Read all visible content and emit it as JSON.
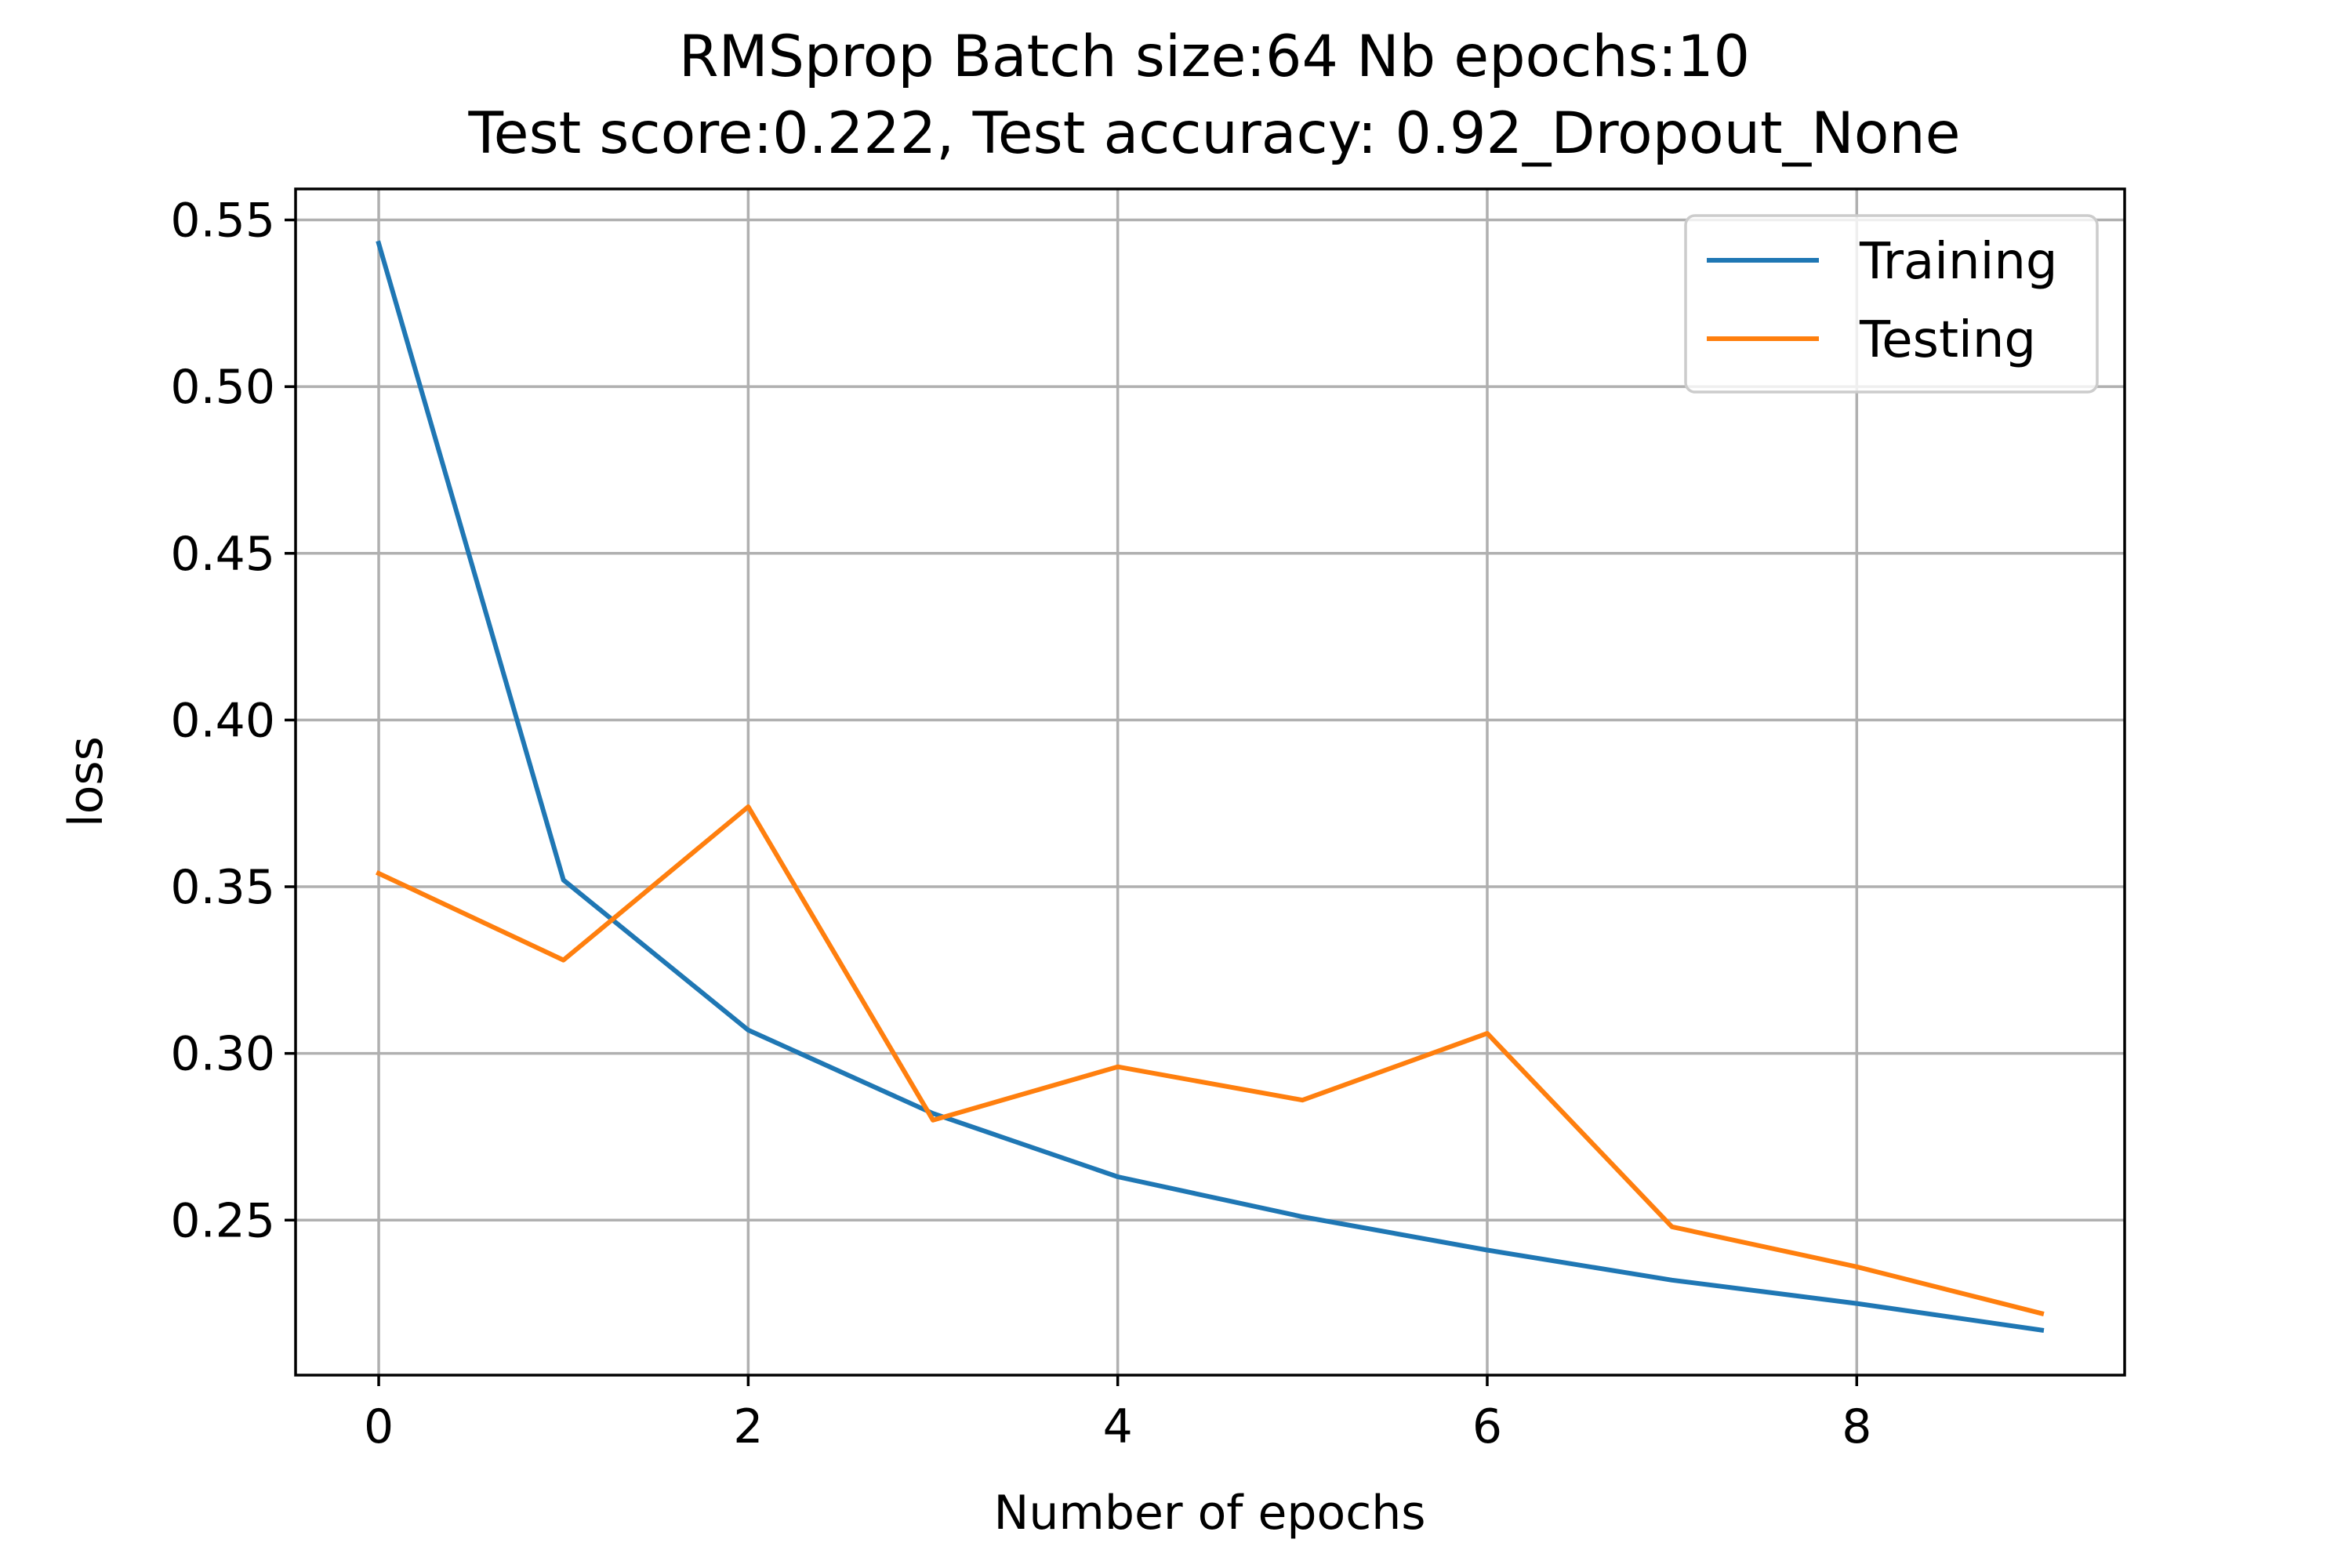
{
  "chart_data": {
    "type": "line",
    "title": "RMSprop Batch size:64 Nb epochs:10",
    "subtitle": "Test score:0.222, Test accuracy: 0.92_Dropout_None",
    "xlabel": "Number of epochs",
    "ylabel": "loss",
    "x": [
      0,
      1,
      2,
      3,
      4,
      5,
      6,
      7,
      8,
      9
    ],
    "xlim": [
      -0.45,
      9.45
    ],
    "ylim": [
      0.2035,
      0.5593
    ],
    "xticks": [
      0,
      2,
      4,
      6,
      8
    ],
    "xtick_labels": [
      "0",
      "2",
      "4",
      "6",
      "8"
    ],
    "yticks": [
      0.25,
      0.3,
      0.35,
      0.4,
      0.45,
      0.5,
      0.55
    ],
    "ytick_labels": [
      "0.25",
      "0.30",
      "0.35",
      "0.40",
      "0.45",
      "0.50",
      "0.55"
    ],
    "grid": true,
    "legend_position": "upper right",
    "series": [
      {
        "name": "Training",
        "color": "#1f77b4",
        "values": [
          0.543,
          0.352,
          0.307,
          0.282,
          0.263,
          0.251,
          0.241,
          0.232,
          0.225,
          0.217
        ]
      },
      {
        "name": "Testing",
        "color": "#ff7f0e",
        "values": [
          0.354,
          0.328,
          0.374,
          0.28,
          0.296,
          0.286,
          0.306,
          0.248,
          0.236,
          0.222
        ]
      }
    ]
  }
}
